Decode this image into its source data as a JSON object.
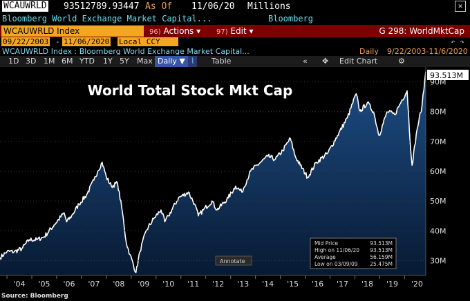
{
  "header": {
    "ticker": "WCAUWRLD",
    "last_value": "93512789.93447",
    "as_of_label": "As Of",
    "as_of_date": "11/06/20",
    "units": "Millions",
    "close_glyph": "✕"
  },
  "subheader": {
    "name": "Bloomberg World Exchange Market Capital...",
    "source": "Bloomberg"
  },
  "toolbar": {
    "security": "WCAUWRLD Index",
    "actions_num": "96)",
    "actions_label": "Actions",
    "edit_num": "97)",
    "edit_label": "Edit",
    "graph_label": "G 298: WorldMktCap"
  },
  "range": {
    "start": "09/22/2003",
    "end": "11/06/2020",
    "currency": "Local CCY"
  },
  "legend_line": {
    "description": "WCAUWRLD Index : Bloomberg World Exchange Market Capital...",
    "periodicity": "Daily",
    "period": "9/22/2003-11/6/2020"
  },
  "tabs": {
    "items": [
      "1D",
      "3D",
      "1M",
      "6M",
      "YTD",
      "1Y",
      "5Y",
      "Max"
    ],
    "periodicity_select": "Daily ▼",
    "table_label": "Table",
    "edit_chart_label": "Edit Chart"
  },
  "footer": {
    "source_note": "Source: Bloomberg"
  },
  "colors": {
    "line": "#ffffff",
    "area_top": "#1d4e86",
    "area_bottom": "#081a33",
    "accent_orange": "#f4a623",
    "bar_red": "#7c0000"
  },
  "chart_data": {
    "type": "area",
    "title": "World Total Stock Mkt Cap",
    "ylabel": "",
    "xlabel": "",
    "y_unit_suffix": "M",
    "ylim": [
      25,
      95
    ],
    "yticks": [
      30,
      40,
      50,
      60,
      70,
      80,
      90
    ],
    "xlim": [
      2003.72,
      2020.85
    ],
    "xticks": [
      {
        "label": "'04",
        "x": 2004.5
      },
      {
        "label": "'05",
        "x": 2005.5
      },
      {
        "label": "'06",
        "x": 2006.5
      },
      {
        "label": "'07",
        "x": 2007.5
      },
      {
        "label": "'08",
        "x": 2008.5
      },
      {
        "label": "'09",
        "x": 2009.5
      },
      {
        "label": "'10",
        "x": 2010.5
      },
      {
        "label": "'11",
        "x": 2011.5
      },
      {
        "label": "'12",
        "x": 2012.5
      },
      {
        "label": "'13",
        "x": 2013.5
      },
      {
        "label": "'14",
        "x": 2014.5
      },
      {
        "label": "'15",
        "x": 2015.5
      },
      {
        "label": "'16",
        "x": 2016.5
      },
      {
        "label": "'17",
        "x": 2017.5
      },
      {
        "label": "'18",
        "x": 2018.5
      },
      {
        "label": "'19",
        "x": 2019.5
      },
      {
        "label": "'20",
        "x": 2020.5
      }
    ],
    "last_label": "93.513M",
    "annotate_label": "Annotate",
    "stats_box": {
      "rows": [
        {
          "label": "Mid Price",
          "value": "93.513M"
        },
        {
          "label": "High on 11/06/20",
          "value": "93.513M"
        },
        {
          "label": "Average",
          "value": "56.159M"
        },
        {
          "label": "Low on 03/09/09",
          "value": "25.475M"
        }
      ]
    },
    "series": [
      {
        "x": [
          2003.72,
          2004.0,
          2004.3,
          2004.6,
          2004.9,
          2005.2,
          2005.5,
          2005.9,
          2006.3,
          2006.4,
          2006.6,
          2006.9,
          2007.2,
          2007.5,
          2007.65,
          2007.83,
          2008.0,
          2008.2,
          2008.45,
          2008.65,
          2008.8,
          2008.95,
          2009.19,
          2009.35,
          2009.6,
          2009.9,
          2010.2,
          2010.35,
          2010.5,
          2010.9,
          2011.3,
          2011.55,
          2011.7,
          2011.9,
          2012.25,
          2012.45,
          2012.9,
          2013.2,
          2013.45,
          2013.8,
          2014.2,
          2014.5,
          2014.8,
          2015.1,
          2015.4,
          2015.6,
          2015.8,
          2016.1,
          2016.45,
          2016.9,
          2017.3,
          2017.7,
          2018.05,
          2018.2,
          2018.5,
          2018.75,
          2018.97,
          2019.3,
          2019.6,
          2019.9,
          2020.1,
          2020.22,
          2020.3,
          2020.5,
          2020.7,
          2020.85
        ],
        "y": [
          31,
          33,
          33,
          34,
          37,
          37,
          38,
          42,
          46,
          43,
          45,
          49,
          52,
          57,
          60,
          63,
          58,
          55,
          56,
          46,
          36,
          32,
          26,
          33,
          40,
          44,
          47,
          43,
          45,
          51,
          53,
          49,
          45,
          47,
          50,
          47,
          51,
          55,
          53,
          60,
          63,
          65,
          64,
          67,
          71,
          65,
          62,
          58,
          63,
          66,
          72,
          78,
          86,
          80,
          83,
          80,
          72,
          80,
          79,
          84,
          87,
          70,
          62,
          74,
          82,
          93.5
        ]
      }
    ]
  }
}
